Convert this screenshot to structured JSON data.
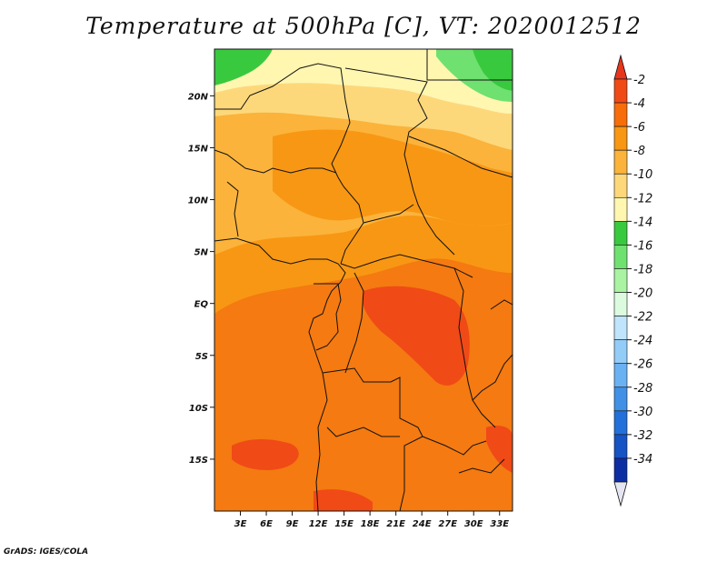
{
  "title": "Temperature at 500hPa [C], VT: 2020012512",
  "credit": "GrADS: IGES/COLA",
  "map": {
    "lon_range": [
      0,
      34.5
    ],
    "lat_range": [
      -20,
      24.5
    ],
    "lon_ticks": [
      "3E",
      "6E",
      "9E",
      "12E",
      "15E",
      "18E",
      "21E",
      "24E",
      "27E",
      "30E",
      "33E"
    ],
    "lon_tick_values": [
      3,
      6,
      9,
      12,
      15,
      18,
      21,
      24,
      27,
      30,
      33
    ],
    "lat_ticks": [
      "20N",
      "15N",
      "10N",
      "5N",
      "EQ",
      "5S",
      "10S",
      "15S"
    ],
    "lat_tick_values": [
      20,
      15,
      10,
      5,
      0,
      -5,
      -10,
      -15
    ]
  },
  "colorbar": {
    "labels": [
      "-2",
      "-4",
      "-6",
      "-8",
      "-10",
      "-12",
      "-14",
      "-16",
      "-18",
      "-20",
      "-22",
      "-24",
      "-26",
      "-28",
      "-30",
      "-32",
      "-34"
    ],
    "colors": [
      "#f04a17",
      "#f76d0a",
      "#f89713",
      "#fbb33b",
      "#fdd87b",
      "#fff6b0",
      "#39c93e",
      "#6fe170",
      "#a9f3a2",
      "#dcfbde",
      "#bfe4fb",
      "#94ccf8",
      "#6ab1f4",
      "#4091e6",
      "#2370db",
      "#1653c4",
      "#0d2ea3",
      "#09125e"
    ],
    "top_arrow_color": "#e8361a",
    "bottom_arrow_color": "#e6e6f2"
  }
}
